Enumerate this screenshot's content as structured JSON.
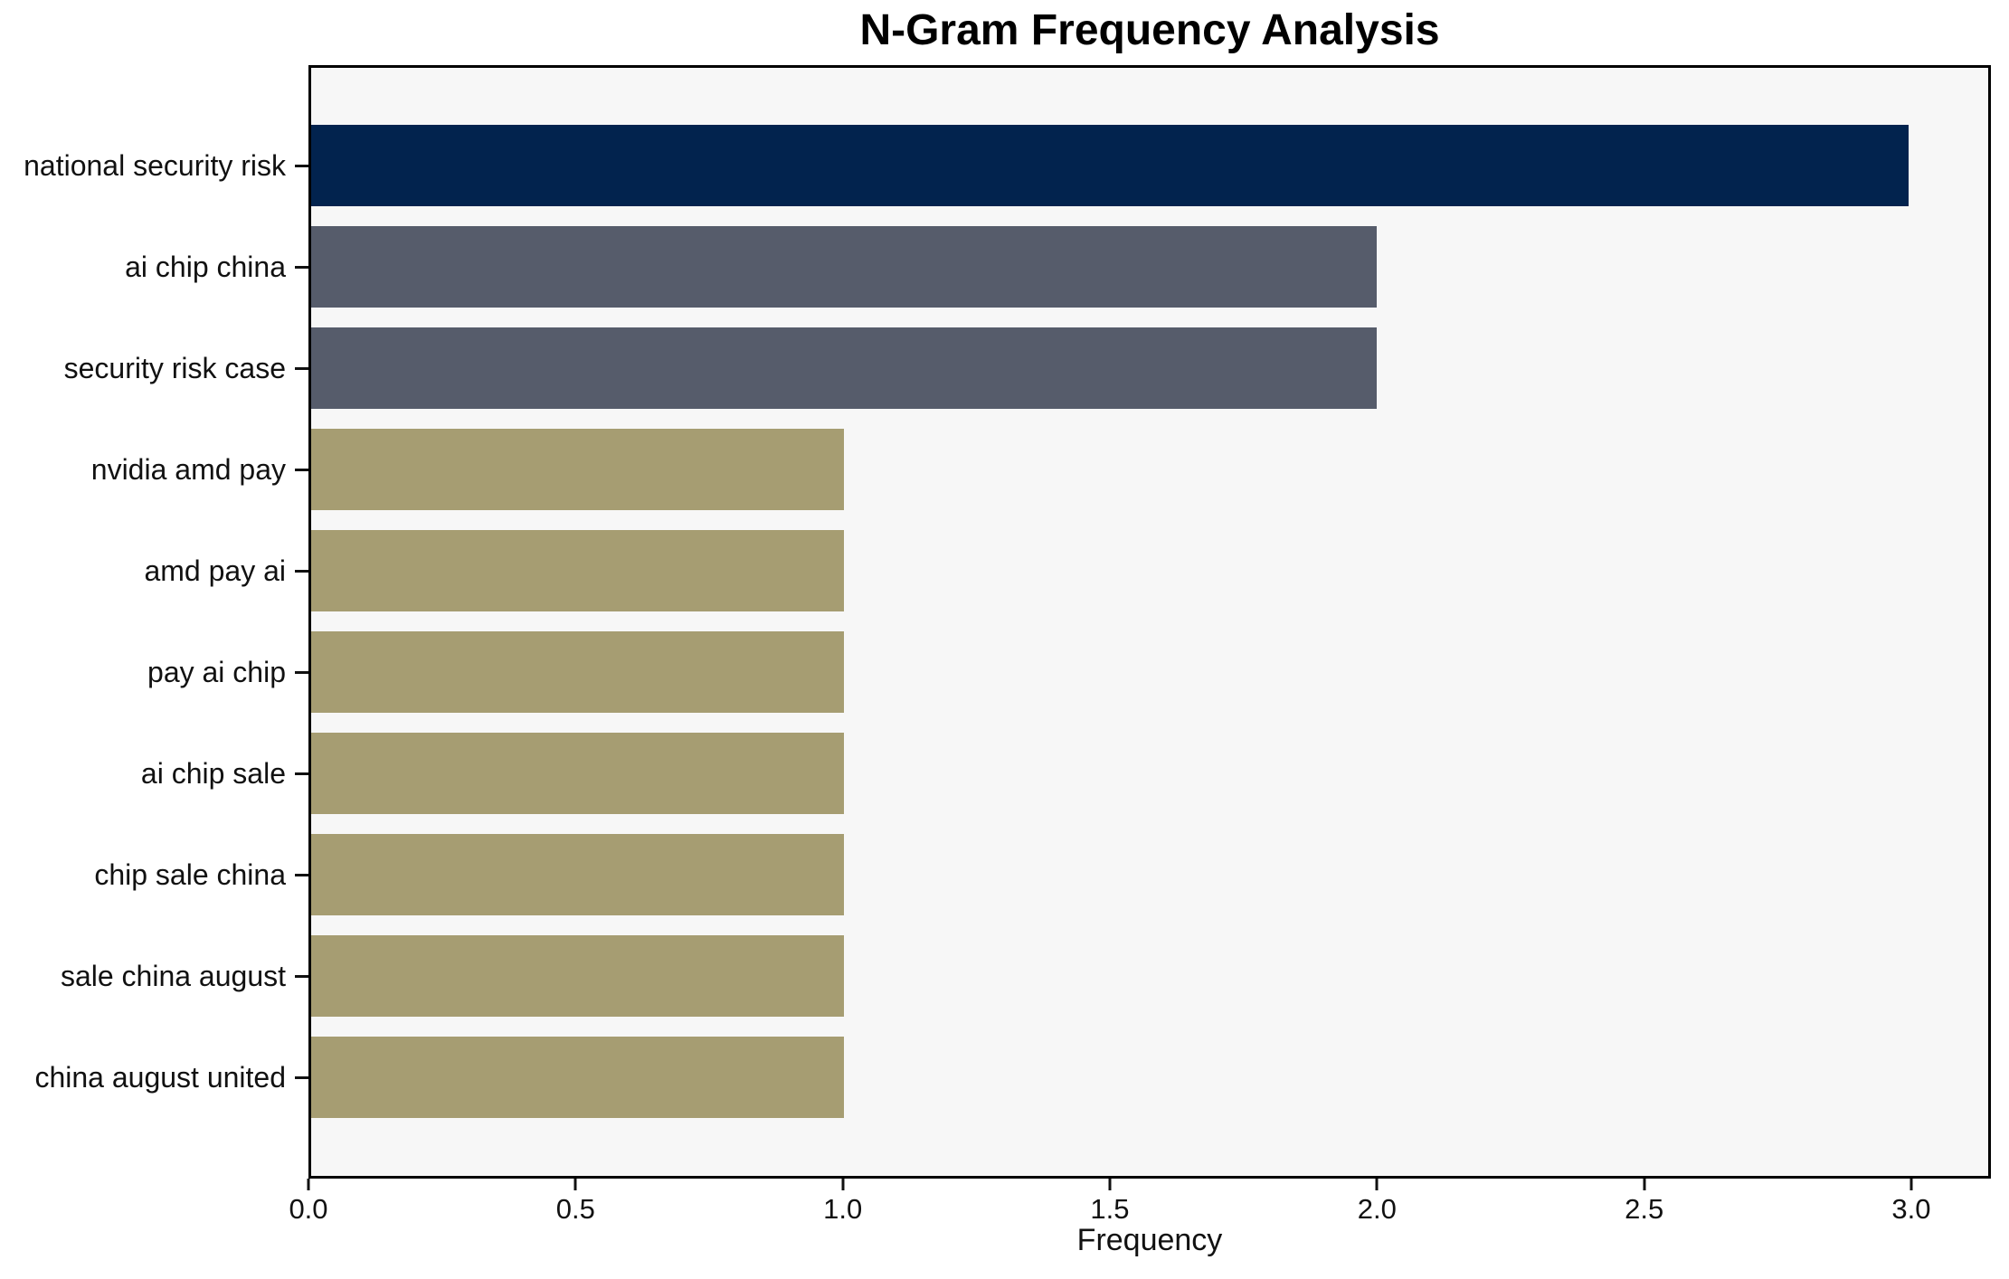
{
  "figure": {
    "background": "#ffffff"
  },
  "chart_data": {
    "type": "bar",
    "orientation": "horizontal",
    "title": "N-Gram Frequency Analysis",
    "xlabel": "Frequency",
    "ylabel": "",
    "categories": [
      "national security risk",
      "ai chip china",
      "security risk case",
      "nvidia amd pay",
      "amd pay ai",
      "pay ai chip",
      "ai chip sale",
      "chip sale china",
      "sale china august",
      "china august united"
    ],
    "values": [
      3,
      2,
      2,
      1,
      1,
      1,
      1,
      1,
      1,
      1
    ],
    "bar_colors": [
      "#02234e",
      "#565c6b",
      "#565c6b",
      "#a69d72",
      "#a69d72",
      "#a69d72",
      "#a69d72",
      "#a69d72",
      "#a69d72",
      "#a69d72"
    ],
    "xlim": [
      0,
      3.149
    ],
    "x_ticks": {
      "values": [
        0,
        0.5,
        1,
        1.5,
        2,
        2.5,
        3
      ],
      "labels": [
        "0.0",
        "0.5",
        "1.0",
        "1.5",
        "2.0",
        "2.5",
        "3.0"
      ]
    },
    "grid": false,
    "legend": false,
    "plot_background": "#f7f7f7",
    "colors": {
      "top_bar": "#02234e",
      "mid_bar": "#565c6b",
      "low_bar": "#a69d72",
      "axis": "#000000",
      "text": "#111111"
    }
  }
}
